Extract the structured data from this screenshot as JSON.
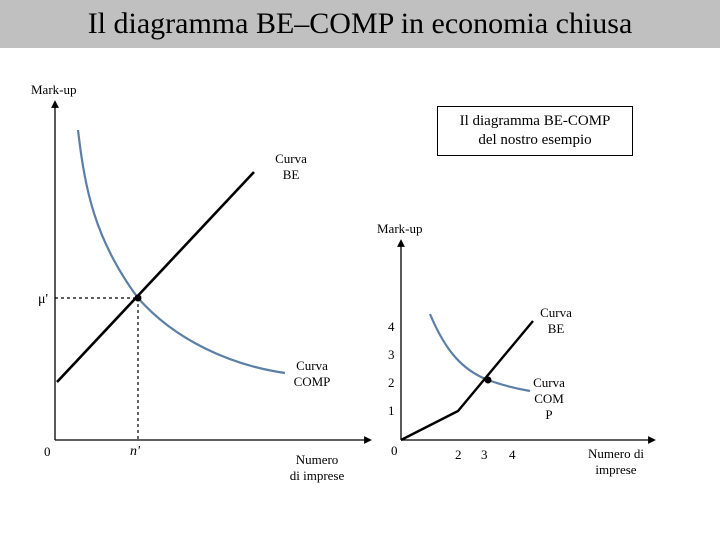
{
  "header": {
    "title": "Il diagramma BE–COMP in economia chiusa"
  },
  "left_diagram": {
    "y_axis_label": "Mark-up",
    "x_axis_label_line1": "Numero",
    "x_axis_label_line2": "di imprese",
    "origin_label": "0",
    "mu_label": "μ'",
    "n_label": "n'",
    "be_label_line1": "Curva",
    "be_label_line2": "BE",
    "comp_label_line1": "Curva",
    "comp_label_line2": "COMP",
    "curve_colors": {
      "be": "#000000",
      "comp": "#5b7fa6"
    }
  },
  "note_box": {
    "line1": "Il diagramma BE-COMP",
    "line2": "del nostro esempio"
  },
  "right_diagram": {
    "y_axis_label": "Mark-up",
    "x_axis_label_line1": "Numero di",
    "x_axis_label_line2": "imprese",
    "origin_label": "0",
    "y_ticks": [
      "4",
      "3",
      "2",
      "1"
    ],
    "x_ticks": [
      "2",
      "3",
      "4"
    ],
    "be_label_line1": "Curva",
    "be_label_line2": "BE",
    "comp_label_line1": "Curva",
    "comp_label_line2": "COM",
    "comp_label_line3": "P",
    "curve_colors": {
      "be": "#000000",
      "comp": "#5b7fa6"
    }
  }
}
